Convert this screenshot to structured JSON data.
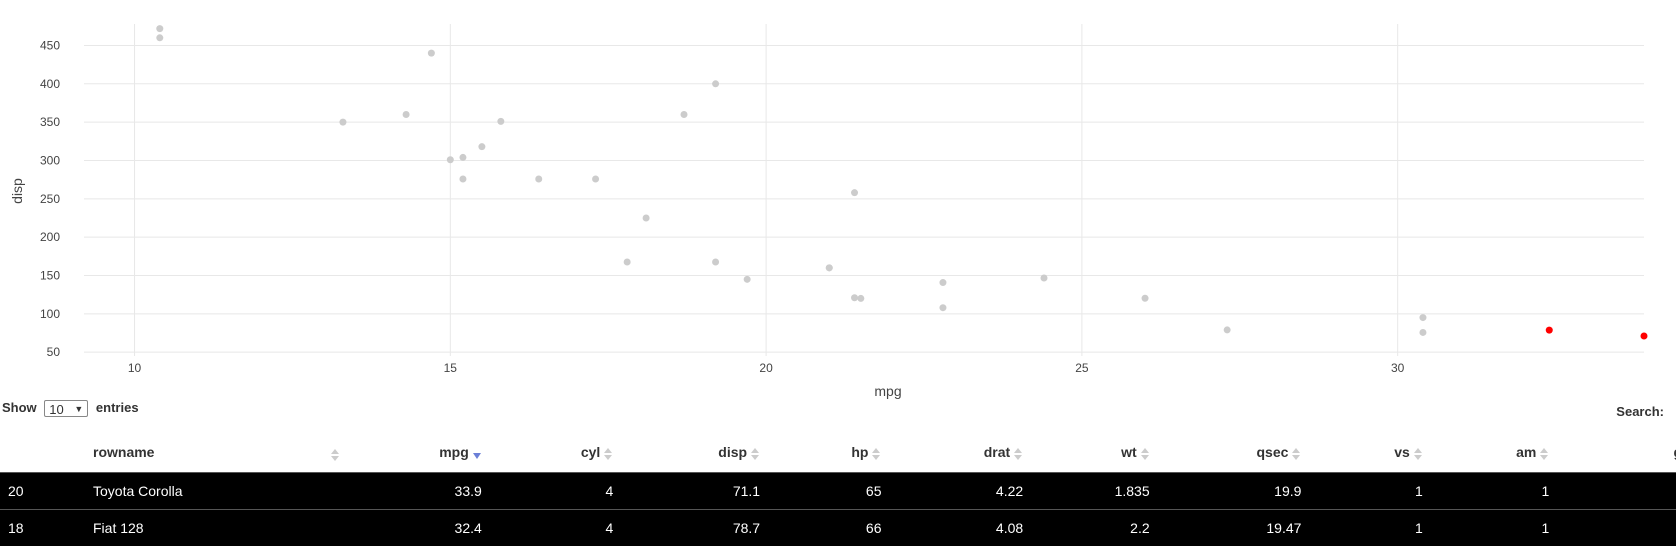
{
  "chart_data": {
    "type": "scatter",
    "xlabel": "mpg",
    "ylabel": "disp",
    "xlim": [
      9.2,
      33.9
    ],
    "ylim": [
      45,
      478
    ],
    "xticks": [
      10,
      15,
      20,
      25,
      30
    ],
    "yticks": [
      50,
      100,
      150,
      200,
      250,
      300,
      350,
      400,
      450
    ],
    "grid": true,
    "colors": {
      "point": "#cccccc",
      "highlight": "#ff0000",
      "grid": "#e8e8e8"
    },
    "points": [
      {
        "x": 21.0,
        "y": 160,
        "highlight": false
      },
      {
        "x": 21.0,
        "y": 160,
        "highlight": false
      },
      {
        "x": 22.8,
        "y": 108,
        "highlight": false
      },
      {
        "x": 21.4,
        "y": 258,
        "highlight": false
      },
      {
        "x": 18.7,
        "y": 360,
        "highlight": false
      },
      {
        "x": 18.1,
        "y": 225,
        "highlight": false
      },
      {
        "x": 14.3,
        "y": 360,
        "highlight": false
      },
      {
        "x": 24.4,
        "y": 146.7,
        "highlight": false
      },
      {
        "x": 22.8,
        "y": 140.8,
        "highlight": false
      },
      {
        "x": 19.2,
        "y": 167.6,
        "highlight": false
      },
      {
        "x": 17.8,
        "y": 167.6,
        "highlight": false
      },
      {
        "x": 16.4,
        "y": 275.8,
        "highlight": false
      },
      {
        "x": 17.3,
        "y": 275.8,
        "highlight": false
      },
      {
        "x": 15.2,
        "y": 275.8,
        "highlight": false
      },
      {
        "x": 10.4,
        "y": 472,
        "highlight": false
      },
      {
        "x": 10.4,
        "y": 460,
        "highlight": false
      },
      {
        "x": 14.7,
        "y": 440,
        "highlight": false
      },
      {
        "x": 32.4,
        "y": 78.7,
        "highlight": true
      },
      {
        "x": 30.4,
        "y": 75.7,
        "highlight": false
      },
      {
        "x": 33.9,
        "y": 71.1,
        "highlight": true
      },
      {
        "x": 21.5,
        "y": 120.1,
        "highlight": false
      },
      {
        "x": 15.5,
        "y": 318,
        "highlight": false
      },
      {
        "x": 15.2,
        "y": 304,
        "highlight": false
      },
      {
        "x": 13.3,
        "y": 350,
        "highlight": false
      },
      {
        "x": 19.2,
        "y": 400,
        "highlight": false
      },
      {
        "x": 27.3,
        "y": 79,
        "highlight": false
      },
      {
        "x": 26.0,
        "y": 120.3,
        "highlight": false
      },
      {
        "x": 30.4,
        "y": 95.1,
        "highlight": false
      },
      {
        "x": 15.8,
        "y": 351,
        "highlight": false
      },
      {
        "x": 19.7,
        "y": 145,
        "highlight": false
      },
      {
        "x": 15.0,
        "y": 301,
        "highlight": false
      },
      {
        "x": 21.4,
        "y": 121,
        "highlight": false
      }
    ]
  },
  "controls": {
    "show_label": "Show",
    "entries_value": "10",
    "entries_label": "entries",
    "search_label": "Search:"
  },
  "table": {
    "columns": [
      {
        "label": "rowname",
        "sort": "none"
      },
      {
        "label": "mpg",
        "sort": "desc"
      },
      {
        "label": "cyl",
        "sort": "none"
      },
      {
        "label": "disp",
        "sort": "none"
      },
      {
        "label": "hp",
        "sort": "none"
      },
      {
        "label": "drat",
        "sort": "none"
      },
      {
        "label": "wt",
        "sort": "none"
      },
      {
        "label": "qsec",
        "sort": "none"
      },
      {
        "label": "vs",
        "sort": "none"
      },
      {
        "label": "am",
        "sort": "none"
      },
      {
        "label": "g",
        "sort": "none"
      }
    ],
    "rows": [
      {
        "index": "20",
        "cells": [
          "Toyota Corolla",
          "33.9",
          "4",
          "71.1",
          "65",
          "4.22",
          "1.835",
          "19.9",
          "1",
          "1",
          ""
        ]
      },
      {
        "index": "18",
        "cells": [
          "Fiat 128",
          "32.4",
          "4",
          "78.7",
          "66",
          "4.08",
          "2.2",
          "19.47",
          "1",
          "1",
          ""
        ]
      }
    ],
    "colors": {
      "row_bg": "#000000",
      "row_text": "#ffffff",
      "sort_active": "#6b7fd7",
      "sort_inactive": "#cccccc"
    }
  }
}
